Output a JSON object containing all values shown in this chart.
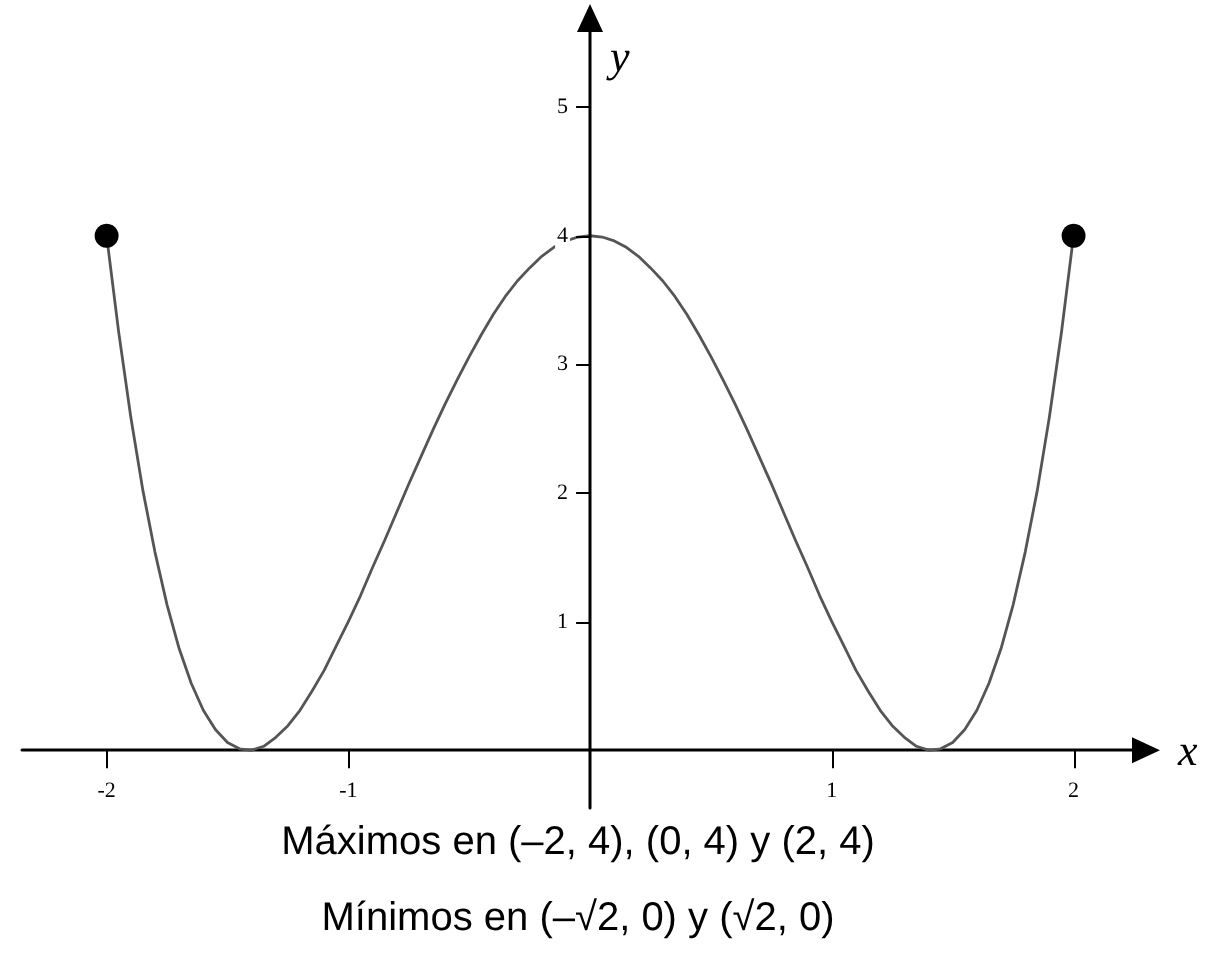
{
  "chart_data": {
    "type": "line",
    "xlabel": "x",
    "ylabel": "y",
    "xlim": [
      -2.35,
      2.25
    ],
    "ylim": [
      -0.45,
      5.6
    ],
    "xticks": [
      -2,
      -1,
      1,
      2
    ],
    "yticks": [
      1,
      2,
      3,
      4,
      5
    ],
    "marker": "none",
    "series": [
      {
        "color": "#555555",
        "x": [
          -2,
          -1.95,
          -1.9,
          -1.85,
          -1.8,
          -1.75,
          -1.7,
          -1.65,
          -1.6,
          -1.55,
          -1.5,
          -1.45,
          -1.41,
          -1.4,
          -1.35,
          -1.3,
          -1.25,
          -1.2,
          -1.15,
          -1.1,
          -1.05,
          -1,
          -0.95,
          -0.9,
          -0.85,
          -0.8,
          -0.75,
          -0.7,
          -0.65,
          -0.6,
          -0.55,
          -0.5,
          -0.45,
          -0.4,
          -0.35,
          -0.3,
          -0.25,
          -0.2,
          -0.15,
          -0.1,
          -0.05,
          0,
          0.05,
          0.1,
          0.15,
          0.2,
          0.25,
          0.3,
          0.35,
          0.4,
          0.45,
          0.5,
          0.55,
          0.6,
          0.65,
          0.7,
          0.75,
          0.8,
          0.85,
          0.9,
          0.95,
          1,
          1.05,
          1.1,
          1.15,
          1.2,
          1.25,
          1.3,
          1.35,
          1.4,
          1.41,
          1.45,
          1.5,
          1.55,
          1.6,
          1.65,
          1.7,
          1.75,
          1.8,
          1.85,
          1.9,
          1.95,
          2
        ],
        "values": [
          4,
          3.25,
          2.59,
          2.02,
          1.54,
          1.13,
          0.79,
          0.52,
          0.31,
          0.16,
          0.06,
          0.01,
          0,
          0,
          0.03,
          0.1,
          0.19,
          0.31,
          0.46,
          0.62,
          0.81,
          1,
          1.2,
          1.42,
          1.63,
          1.85,
          2.07,
          2.28,
          2.49,
          2.69,
          2.88,
          3.06,
          3.23,
          3.39,
          3.53,
          3.65,
          3.75,
          3.84,
          3.91,
          3.96,
          3.99,
          4,
          3.99,
          3.96,
          3.91,
          3.84,
          3.75,
          3.65,
          3.53,
          3.39,
          3.23,
          3.06,
          2.88,
          2.69,
          2.49,
          2.28,
          2.07,
          1.85,
          1.63,
          1.42,
          1.2,
          1,
          0.81,
          0.62,
          0.46,
          0.31,
          0.19,
          0.1,
          0.03,
          0,
          0,
          0.01,
          0.06,
          0.16,
          0.31,
          0.52,
          0.79,
          1.13,
          1.54,
          2.02,
          2.59,
          3.25,
          4
        ]
      },
      {
        "type": "scatter",
        "color": "#000000",
        "marker": "circle",
        "x": [
          -2,
          2
        ],
        "values": [
          4,
          4
        ]
      }
    ],
    "annotations": [
      "Máximos en (–2, 4), (0, 4) y (2, 4)",
      "Mínimos en (–√2, 0) y (√2, 0)"
    ]
  }
}
